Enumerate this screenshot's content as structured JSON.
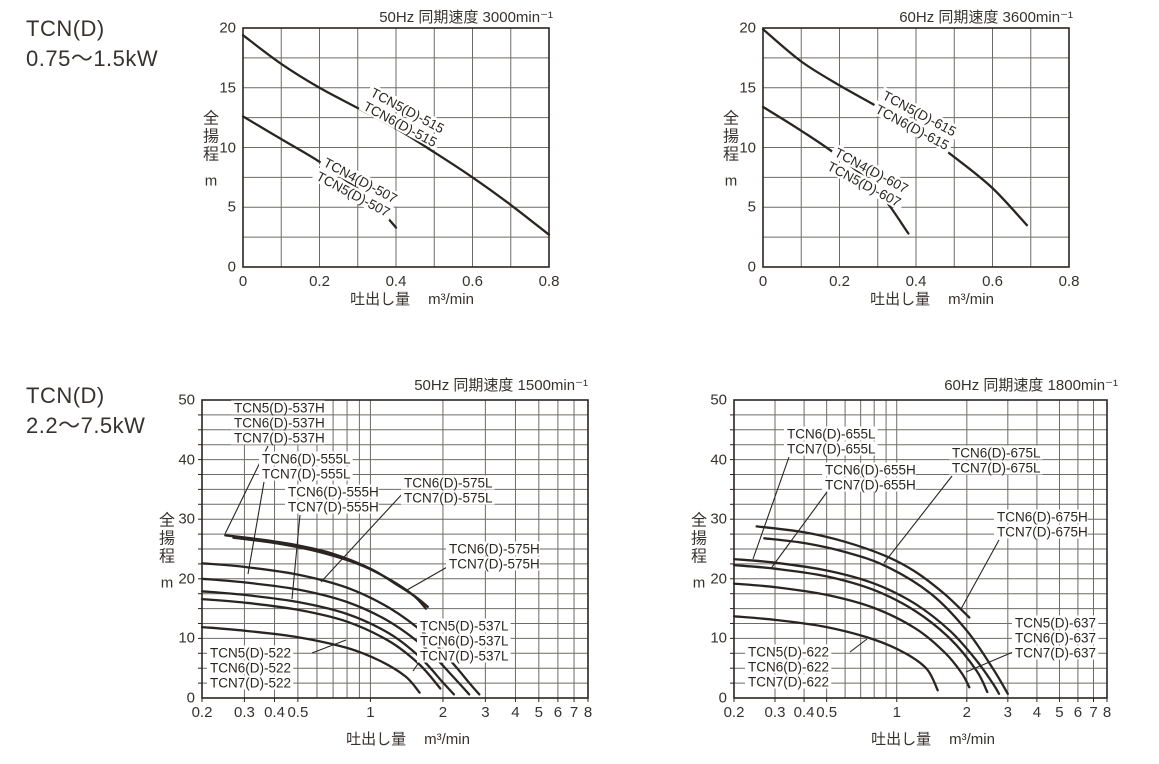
{
  "page": {
    "background": "#ffffff",
    "ink_color": "#2b2522",
    "grid_color": "#6f6b67",
    "text_color": "#38322f"
  },
  "sections": [
    {
      "model": "TCN(D)",
      "range": "0.75〜1.5kW"
    },
    {
      "model": "TCN(D)",
      "range": "2.2〜7.5kW"
    }
  ],
  "chart_data": [
    {
      "type": "line",
      "title": "50Hz 同期速度 3000min⁻¹",
      "x_axis": {
        "label": "吐出し量",
        "unit": "m³/min",
        "scale": "linear",
        "min": 0,
        "max": 0.8,
        "grid_step": 0.1,
        "ticks": [
          "0",
          "0.2",
          "0.4",
          "0.6",
          "0.8"
        ]
      },
      "y_axis": {
        "label": "全揚程",
        "unit": "m",
        "min": 0,
        "max": 20,
        "grid_step": 2.5,
        "ticks": [
          "20",
          "15",
          "10",
          "5",
          "0"
        ]
      },
      "series": [
        {
          "models": [
            "TCN5(D)-515",
            "TCN6(D)-515"
          ],
          "points": [
            [
              0,
              19.4
            ],
            [
              0.1,
              17.0
            ],
            [
              0.2,
              15.0
            ],
            [
              0.3,
              13.3
            ],
            [
              0.4,
              11.6
            ],
            [
              0.5,
              9.6
            ],
            [
              0.6,
              7.5
            ],
            [
              0.7,
              5.2
            ],
            [
              0.8,
              2.7
            ]
          ]
        },
        {
          "models": [
            "TCN4(D)-507",
            "TCN5(D)-507"
          ],
          "points": [
            [
              0,
              12.6
            ],
            [
              0.1,
              10.7
            ],
            [
              0.2,
              8.8
            ],
            [
              0.3,
              6.5
            ],
            [
              0.35,
              5.1
            ],
            [
              0.4,
              3.3
            ]
          ]
        }
      ]
    },
    {
      "type": "line",
      "title": "60Hz 同期速度 3600min⁻¹",
      "x_axis": {
        "label": "吐出し量",
        "unit": "m³/min",
        "scale": "linear",
        "min": 0,
        "max": 0.8,
        "grid_step": 0.1,
        "ticks": [
          "0",
          "0.2",
          "0.4",
          "0.6",
          "0.8"
        ]
      },
      "y_axis": {
        "label": "全揚程",
        "unit": "m",
        "min": 0,
        "max": 20,
        "grid_step": 2.5,
        "ticks": [
          "20",
          "15",
          "10",
          "5",
          "0"
        ]
      },
      "series": [
        {
          "models": [
            "TCN5(D)-615",
            "TCN6(D)-615"
          ],
          "points": [
            [
              0,
              19.9
            ],
            [
              0.1,
              17.2
            ],
            [
              0.2,
              15.2
            ],
            [
              0.3,
              13.4
            ],
            [
              0.4,
              11.5
            ],
            [
              0.5,
              9.2
            ],
            [
              0.6,
              6.6
            ],
            [
              0.69,
              3.5
            ]
          ]
        },
        {
          "models": [
            "TCN4(D)-607",
            "TCN5(D)-607"
          ],
          "points": [
            [
              0,
              13.4
            ],
            [
              0.1,
              11.4
            ],
            [
              0.2,
              9.2
            ],
            [
              0.3,
              6.4
            ],
            [
              0.38,
              2.8
            ]
          ]
        }
      ]
    },
    {
      "type": "line",
      "title": "50Hz 同期速度 1500min⁻¹",
      "x_axis": {
        "label": "吐出し量",
        "unit": "m³/min",
        "scale": "log",
        "min": 0.2,
        "max": 8,
        "ticks": [
          "0.2",
          "0.3",
          "0.4",
          "0.5",
          "1",
          "2",
          "3",
          "4",
          "5",
          "6",
          "7",
          "8"
        ]
      },
      "y_axis": {
        "label": "全揚程",
        "unit": "m",
        "min": 0,
        "max": 50,
        "grid_step": 2.5,
        "ticks": [
          "50",
          "40",
          "30",
          "20",
          "10",
          "0"
        ]
      },
      "series": [
        {
          "models": [
            "TCN5(D)-537H",
            "TCN6(D)-537H",
            "TCN7(D)-537H"
          ],
          "points": [
            [
              0.25,
              27.3
            ],
            [
              0.35,
              26.6
            ],
            [
              0.5,
              25.6
            ],
            [
              0.7,
              24.2
            ],
            [
              1.0,
              21.7
            ],
            [
              1.3,
              18.9
            ],
            [
              1.55,
              16.9
            ],
            [
              1.73,
              15.3
            ]
          ]
        },
        {
          "models": [
            "TCN6(D)-555L",
            "TCN7(D)-555L"
          ],
          "points": [
            [
              0.2,
              20.0
            ],
            [
              0.3,
              19.4
            ],
            [
              0.5,
              18.2
            ],
            [
              0.8,
              16.1
            ],
            [
              1.2,
              12.8
            ],
            [
              1.7,
              8.3
            ],
            [
              2.2,
              3.6
            ],
            [
              2.57,
              0.6
            ]
          ]
        },
        {
          "models": [
            "TCN6(D)-555H",
            "TCN7(D)-555H"
          ],
          "points": [
            [
              0.2,
              17.9
            ],
            [
              0.3,
              17.3
            ],
            [
              0.5,
              16.1
            ],
            [
              0.8,
              14.1
            ],
            [
              1.2,
              10.8
            ],
            [
              1.6,
              6.9
            ],
            [
              2.0,
              2.6
            ],
            [
              2.22,
              0.6
            ]
          ]
        },
        {
          "models": [
            "TCN6(D)-575L",
            "TCN7(D)-575L"
          ],
          "points": [
            [
              0.2,
              22.6
            ],
            [
              0.3,
              22.0
            ],
            [
              0.5,
              20.7
            ],
            [
              0.8,
              18.5
            ],
            [
              1.2,
              15.1
            ],
            [
              1.7,
              10.6
            ],
            [
              2.2,
              5.8
            ],
            [
              2.6,
              2.3
            ],
            [
              2.83,
              0.6
            ]
          ]
        },
        {
          "models": [
            "TCN6(D)-575H",
            "TCN7(D)-575H"
          ],
          "points": [
            [
              0.27,
              26.9
            ],
            [
              0.4,
              26.0
            ],
            [
              0.6,
              24.6
            ],
            [
              0.9,
              22.4
            ],
            [
              1.2,
              19.9
            ],
            [
              1.5,
              17.3
            ],
            [
              1.7,
              15.0
            ]
          ]
        },
        {
          "models": [
            "TCN5(D)-537L",
            "TCN6(D)-537L",
            "TCN7(D)-537L"
          ],
          "points": [
            [
              0.2,
              16.6
            ],
            [
              0.3,
              16.0
            ],
            [
              0.5,
              14.8
            ],
            [
              0.8,
              12.8
            ],
            [
              1.2,
              9.5
            ],
            [
              1.6,
              5.6
            ],
            [
              1.95,
              1.6
            ]
          ]
        },
        {
          "models": [
            "TCN5(D)-522",
            "TCN6(D)-522",
            "TCN7(D)-522"
          ],
          "points": [
            [
              0.2,
              11.9
            ],
            [
              0.3,
              11.3
            ],
            [
              0.5,
              10.2
            ],
            [
              0.8,
              8.4
            ],
            [
              1.1,
              6.2
            ],
            [
              1.4,
              3.6
            ],
            [
              1.6,
              0.9
            ]
          ]
        }
      ]
    },
    {
      "type": "line",
      "title": "60Hz 同期速度 1800min⁻¹",
      "x_axis": {
        "label": "吐出し量",
        "unit": "m³/min",
        "scale": "log",
        "min": 0.2,
        "max": 8,
        "ticks": [
          "0.2",
          "0.3",
          "0.4",
          "0.5",
          "1",
          "2",
          "3",
          "4",
          "5",
          "6",
          "7",
          "8"
        ]
      },
      "y_axis": {
        "label": "全揚程",
        "unit": "m",
        "min": 0,
        "max": 50,
        "grid_step": 2.5,
        "ticks": [
          "50",
          "40",
          "30",
          "20",
          "10",
          "0"
        ]
      },
      "series": [
        {
          "models": [
            "TCN6(D)-655L",
            "TCN7(D)-655L"
          ],
          "points": [
            [
              0.2,
              23.3
            ],
            [
              0.3,
              22.7
            ],
            [
              0.5,
              21.4
            ],
            [
              0.8,
              19.2
            ],
            [
              1.2,
              15.8
            ],
            [
              1.7,
              11.2
            ],
            [
              2.2,
              6.3
            ],
            [
              2.6,
              2.3
            ],
            [
              2.75,
              0.7
            ]
          ]
        },
        {
          "models": [
            "TCN6(D)-655H",
            "TCN7(D)-655H"
          ],
          "points": [
            [
              0.2,
              22.3
            ],
            [
              0.3,
              21.7
            ],
            [
              0.5,
              20.4
            ],
            [
              0.8,
              18.1
            ],
            [
              1.2,
              14.6
            ],
            [
              1.7,
              9.9
            ],
            [
              2.2,
              4.6
            ],
            [
              2.45,
              1.0
            ]
          ]
        },
        {
          "models": [
            "TCN6(D)-675L",
            "TCN7(D)-675L"
          ],
          "points": [
            [
              0.27,
              26.8
            ],
            [
              0.4,
              26.0
            ],
            [
              0.6,
              24.5
            ],
            [
              0.9,
              22.1
            ],
            [
              1.4,
              17.5
            ],
            [
              2.0,
              11.3
            ],
            [
              2.6,
              4.8
            ],
            [
              3.0,
              0.7
            ]
          ]
        },
        {
          "models": [
            "TCN6(D)-675H",
            "TCN7(D)-675H"
          ],
          "points": [
            [
              0.25,
              28.8
            ],
            [
              0.4,
              27.8
            ],
            [
              0.6,
              26.2
            ],
            [
              0.9,
              23.8
            ],
            [
              1.2,
              21.2
            ],
            [
              1.6,
              17.5
            ],
            [
              2.05,
              13.5
            ]
          ]
        },
        {
          "models": [
            "TCN5(D)-637",
            "TCN6(D)-637",
            "TCN7(D)-637"
          ],
          "points": [
            [
              0.2,
              19.2
            ],
            [
              0.3,
              18.6
            ],
            [
              0.5,
              17.3
            ],
            [
              0.8,
              15.1
            ],
            [
              1.2,
              11.7
            ],
            [
              1.6,
              7.7
            ],
            [
              1.9,
              4.2
            ],
            [
              2.05,
              1.8
            ]
          ]
        },
        {
          "models": [
            "TCN5(D)-622",
            "TCN6(D)-622",
            "TCN7(D)-622"
          ],
          "points": [
            [
              0.2,
              13.7
            ],
            [
              0.3,
              13.1
            ],
            [
              0.5,
              11.9
            ],
            [
              0.8,
              9.8
            ],
            [
              1.1,
              7.4
            ],
            [
              1.35,
              4.8
            ],
            [
              1.5,
              1.3
            ]
          ]
        }
      ]
    }
  ]
}
